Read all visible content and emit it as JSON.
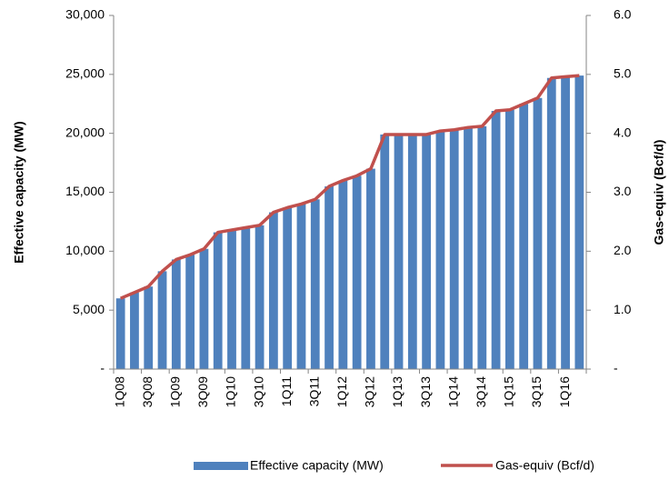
{
  "chart_data": {
    "type": "bar-line",
    "categories": [
      "1Q08",
      null,
      "3Q08",
      null,
      "1Q09",
      null,
      "3Q09",
      null,
      "1Q10",
      null,
      "3Q10",
      null,
      "1Q11",
      null,
      "3Q11",
      null,
      "1Q12",
      null,
      "3Q12",
      null,
      "1Q13",
      null,
      "3Q13",
      null,
      "1Q14",
      null,
      "3Q14",
      null,
      "1Q15",
      null,
      "3Q15",
      null,
      "1Q16",
      null
    ],
    "series": [
      {
        "name": "Effective capacity (MW)",
        "color": "#4f81bd",
        "type": "bar",
        "values": [
          6000,
          6500,
          7000,
          8300,
          9300,
          9700,
          10200,
          11600,
          11800,
          12000,
          12200,
          13300,
          13700,
          14000,
          14400,
          15500,
          16000,
          16400,
          17000,
          19900,
          19900,
          19900,
          19900,
          20200,
          20300,
          20500,
          20600,
          21900,
          22000,
          22500,
          23000,
          24700,
          24800,
          24900
        ]
      },
      {
        "name": "Gas-equiv (Bcf/d)",
        "color": "#c0504d",
        "type": "line",
        "axis": "y2",
        "values": [
          1.2,
          1.3,
          1.4,
          1.66,
          1.86,
          1.94,
          2.04,
          2.32,
          2.36,
          2.4,
          2.44,
          2.66,
          2.74,
          2.8,
          2.88,
          3.1,
          3.2,
          3.28,
          3.4,
          3.98,
          3.98,
          3.98,
          3.98,
          4.04,
          4.06,
          4.1,
          4.12,
          4.38,
          4.4,
          4.5,
          4.6,
          4.94,
          4.96,
          4.98
        ]
      }
    ],
    "y_label": "Effective capacity (MW)",
    "y2_label": "Gas-equiv (Bcf/d)",
    "ylim": [
      0,
      30000
    ],
    "yticks": [
      {
        "value": 0,
        "label": "-"
      },
      {
        "value": 5000,
        "label": "5,000"
      },
      {
        "value": 10000,
        "label": "10,000"
      },
      {
        "value": 15000,
        "label": "15,000"
      },
      {
        "value": 20000,
        "label": "20,000"
      },
      {
        "value": 25000,
        "label": "25,000"
      },
      {
        "value": 30000,
        "label": "30,000"
      }
    ],
    "y2lim": [
      0,
      6
    ],
    "y2ticks": [
      {
        "value": 0,
        "label": "-"
      },
      {
        "value": 1,
        "label": "1.0"
      },
      {
        "value": 2,
        "label": "2.0"
      },
      {
        "value": 3,
        "label": "3.0"
      },
      {
        "value": 4,
        "label": "4.0"
      },
      {
        "value": 5,
        "label": "5.0"
      },
      {
        "value": 6,
        "label": "6.0"
      }
    ]
  }
}
